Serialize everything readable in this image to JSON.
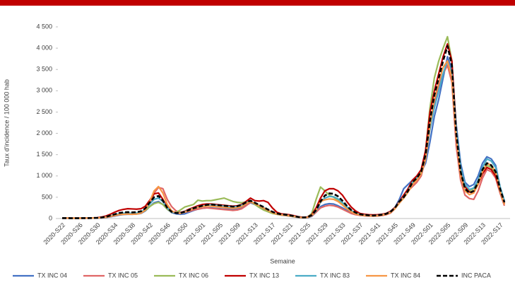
{
  "chart_data": {
    "type": "line",
    "y_label": "Taux d'incidence / 100 000 hab",
    "x_label": "Semaine",
    "categories": [
      "2020-S22",
      null,
      null,
      null,
      "2020-S26",
      null,
      null,
      null,
      "2020-S30",
      null,
      null,
      null,
      "2020-S34",
      null,
      null,
      null,
      "2020-S38",
      null,
      null,
      null,
      "2020-S42",
      null,
      null,
      null,
      "2020-S46",
      null,
      null,
      null,
      "2020-S50",
      null,
      null,
      null,
      "2021-S01",
      null,
      null,
      null,
      "2021-S05",
      null,
      null,
      null,
      "2021-S09",
      null,
      null,
      null,
      "2021-S13",
      null,
      null,
      null,
      "2021-S17",
      null,
      null,
      null,
      "2021-S21",
      null,
      null,
      null,
      "2021-S25",
      null,
      null,
      null,
      "2021-S29",
      null,
      null,
      null,
      "2021-S33",
      null,
      null,
      null,
      "2021-S37",
      null,
      null,
      null,
      "2021-S41",
      null,
      null,
      null,
      "2021-S45",
      null,
      null,
      null,
      "2021-S49",
      null,
      null,
      null,
      "2022-S01",
      null,
      null,
      null,
      "2022-S05",
      null,
      null,
      null,
      "2022-S09",
      null,
      null,
      null,
      "2022-S13",
      null,
      null,
      null,
      "2022-S17",
      null
    ],
    "ylim": [
      0,
      4500
    ],
    "yticks": [
      0,
      500,
      {
        "value": 1000,
        "label": "1 000"
      },
      {
        "value": 1500,
        "label": "1 500"
      },
      {
        "value": 2000,
        "label": "2 000"
      },
      {
        "value": 2500,
        "label": "2 500"
      },
      {
        "value": 3000,
        "label": "3 000"
      },
      {
        "value": 3500,
        "label": "3 500"
      },
      {
        "value": 4000,
        "label": "4 000"
      },
      {
        "value": 4500,
        "label": "4 500"
      }
    ],
    "grid": false,
    "legend": "bottom",
    "series": [
      {
        "name": "TX INC 04",
        "color": "#4472c4",
        "values": [
          8,
          8,
          6,
          6,
          6,
          8,
          8,
          10,
          10,
          15,
          25,
          40,
          60,
          80,
          95,
          100,
          100,
          105,
          120,
          180,
          280,
          370,
          400,
          330,
          220,
          140,
          110,
          100,
          110,
          150,
          190,
          220,
          240,
          250,
          250,
          240,
          230,
          220,
          220,
          210,
          220,
          250,
          310,
          370,
          330,
          280,
          230,
          180,
          130,
          100,
          80,
          70,
          55,
          40,
          25,
          18,
          20,
          50,
          150,
          280,
          330,
          350,
          340,
          300,
          250,
          190,
          140,
          100,
          80,
          70,
          65,
          60,
          65,
          75,
          95,
          140,
          260,
          450,
          700,
          800,
          900,
          1000,
          1100,
          1300,
          1800,
          2400,
          2800,
          3300,
          3800,
          3500,
          2200,
          1300,
          850,
          750,
          800,
          1000,
          1300,
          1450,
          1400,
          1250,
          750,
          400
        ]
      },
      {
        "name": "TX INC 05",
        "color": "#e06666",
        "values": [
          8,
          8,
          6,
          6,
          6,
          8,
          8,
          10,
          12,
          18,
          30,
          50,
          70,
          90,
          110,
          120,
          120,
          125,
          140,
          200,
          350,
          600,
          730,
          700,
          450,
          280,
          180,
          140,
          150,
          170,
          200,
          220,
          240,
          250,
          240,
          230,
          220,
          210,
          200,
          190,
          200,
          230,
          300,
          380,
          340,
          290,
          240,
          190,
          140,
          110,
          90,
          80,
          65,
          50,
          30,
          20,
          25,
          60,
          150,
          250,
          290,
          310,
          300,
          270,
          220,
          170,
          120,
          90,
          75,
          65,
          60,
          55,
          60,
          70,
          90,
          130,
          230,
          380,
          550,
          650,
          750,
          850,
          1000,
          1400,
          2100,
          2700,
          3100,
          3400,
          3600,
          3200,
          1700,
          900,
          550,
          470,
          450,
          650,
          950,
          1150,
          1100,
          950,
          600,
          300
        ]
      },
      {
        "name": "TX INC 06",
        "color": "#9bbb59",
        "values": [
          10,
          10,
          8,
          8,
          8,
          10,
          10,
          12,
          15,
          20,
          35,
          55,
          80,
          100,
          110,
          115,
          110,
          115,
          130,
          190,
          280,
          350,
          380,
          330,
          220,
          150,
          140,
          200,
          270,
          300,
          330,
          430,
          410,
          420,
          420,
          440,
          460,
          480,
          440,
          400,
          380,
          370,
          390,
          400,
          330,
          260,
          200,
          160,
          120,
          100,
          85,
          75,
          60,
          45,
          30,
          22,
          30,
          120,
          450,
          740,
          650,
          550,
          500,
          430,
          340,
          240,
          160,
          110,
          85,
          75,
          70,
          65,
          70,
          85,
          105,
          150,
          240,
          380,
          520,
          650,
          850,
          950,
          1100,
          1600,
          2600,
          3300,
          3700,
          4000,
          4270,
          3700,
          2000,
          1100,
          750,
          650,
          700,
          850,
          1100,
          1250,
          1200,
          1050,
          650,
          350
        ]
      },
      {
        "name": "TX INC 13",
        "color": "#c00000",
        "values": [
          12,
          12,
          10,
          10,
          10,
          12,
          12,
          15,
          20,
          35,
          60,
          100,
          150,
          190,
          215,
          230,
          225,
          220,
          230,
          290,
          430,
          580,
          600,
          450,
          260,
          160,
          130,
          140,
          170,
          220,
          260,
          300,
          330,
          340,
          340,
          330,
          320,
          310,
          300,
          290,
          300,
          330,
          400,
          480,
          420,
          410,
          420,
          380,
          250,
          150,
          110,
          100,
          85,
          65,
          40,
          30,
          35,
          90,
          250,
          480,
          650,
          700,
          700,
          650,
          550,
          400,
          270,
          180,
          120,
          100,
          90,
          85,
          90,
          100,
          120,
          170,
          260,
          400,
          550,
          700,
          900,
          1000,
          1150,
          1600,
          2500,
          3000,
          3400,
          3800,
          4100,
          3700,
          2100,
          1150,
          750,
          620,
          620,
          800,
          1050,
          1200,
          1150,
          1000,
          650,
          350
        ]
      },
      {
        "name": "TX INC 83",
        "color": "#4bacc6",
        "values": [
          10,
          10,
          8,
          8,
          8,
          10,
          10,
          12,
          15,
          22,
          35,
          60,
          85,
          110,
          125,
          130,
          125,
          130,
          150,
          220,
          340,
          450,
          480,
          400,
          250,
          160,
          130,
          130,
          160,
          200,
          240,
          270,
          290,
          310,
          320,
          310,
          300,
          290,
          280,
          270,
          280,
          310,
          370,
          410,
          360,
          310,
          260,
          200,
          150,
          110,
          90,
          80,
          65,
          50,
          30,
          22,
          28,
          70,
          180,
          380,
          480,
          520,
          510,
          460,
          380,
          280,
          190,
          130,
          95,
          80,
          70,
          65,
          70,
          85,
          105,
          150,
          240,
          380,
          500,
          650,
          850,
          950,
          1050,
          1400,
          2100,
          2600,
          3000,
          3400,
          3700,
          3400,
          2100,
          1200,
          800,
          680,
          720,
          900,
          1200,
          1400,
          1350,
          1200,
          750,
          420
        ]
      },
      {
        "name": "TX INC 84",
        "color": "#f79646",
        "values": [
          10,
          10,
          8,
          8,
          8,
          10,
          10,
          12,
          15,
          20,
          30,
          50,
          70,
          90,
          100,
          105,
          100,
          105,
          125,
          200,
          400,
          650,
          750,
          600,
          330,
          180,
          130,
          120,
          150,
          190,
          230,
          260,
          280,
          290,
          290,
          280,
          270,
          260,
          250,
          240,
          250,
          280,
          350,
          400,
          350,
          300,
          250,
          190,
          140,
          105,
          85,
          75,
          60,
          45,
          28,
          20,
          25,
          70,
          200,
          400,
          440,
          460,
          450,
          400,
          320,
          230,
          160,
          110,
          85,
          70,
          65,
          60,
          65,
          80,
          100,
          140,
          230,
          360,
          480,
          620,
          800,
          900,
          1050,
          1400,
          2200,
          2800,
          3200,
          3550,
          3700,
          3300,
          1900,
          1000,
          650,
          560,
          600,
          800,
          1100,
          1300,
          1250,
          1100,
          650,
          330
        ]
      },
      {
        "name": "INC PACA",
        "color": "#000000",
        "dashed": true,
        "values": [
          10,
          10,
          8,
          8,
          8,
          10,
          10,
          12,
          15,
          25,
          40,
          70,
          100,
          130,
          145,
          150,
          145,
          150,
          170,
          240,
          380,
          500,
          530,
          420,
          250,
          160,
          130,
          130,
          160,
          200,
          240,
          270,
          300,
          320,
          330,
          320,
          310,
          300,
          290,
          280,
          290,
          320,
          380,
          420,
          370,
          320,
          270,
          210,
          160,
          120,
          100,
          90,
          75,
          55,
          35,
          25,
          30,
          80,
          200,
          400,
          540,
          590,
          580,
          520,
          420,
          300,
          200,
          140,
          100,
          85,
          75,
          70,
          75,
          90,
          110,
          160,
          250,
          400,
          500,
          650,
          850,
          950,
          1100,
          1500,
          2300,
          2900,
          3300,
          3700,
          4050,
          3600,
          2000,
          1100,
          700,
          600,
          650,
          850,
          1150,
          1300,
          1250,
          1100,
          700,
          380
        ]
      }
    ]
  }
}
